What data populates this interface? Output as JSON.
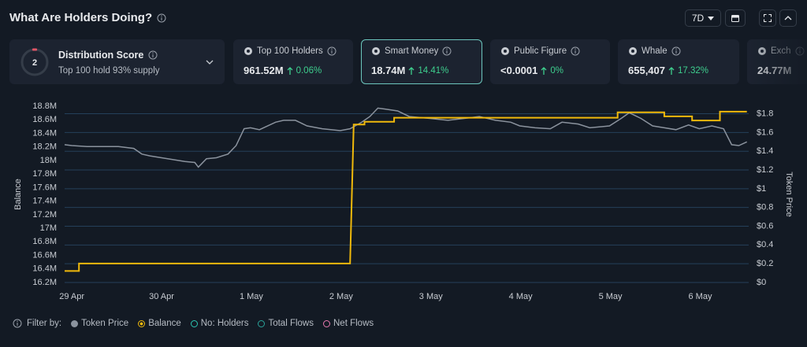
{
  "header": {
    "title": "What Are Holders Doing?",
    "range": "7D"
  },
  "score_card": {
    "score": 2,
    "label": "Distribution Score",
    "note": "Top 100 hold 93% supply"
  },
  "cards": [
    {
      "label": "Top 100 Holders",
      "value": "961.52M",
      "change": "0.06%"
    },
    {
      "label": "Smart Money",
      "value": "18.74M",
      "change": "14.41%"
    },
    {
      "label": "Public Figure",
      "value": "<0.0001",
      "change": "0%"
    },
    {
      "label": "Whale",
      "value": "655,407",
      "change": "17.32%"
    },
    {
      "label": "Exch",
      "value": "24.77M"
    }
  ],
  "filter": {
    "label": "Filter by:"
  },
  "chart_data": {
    "type": "line",
    "ylabel": "Balance",
    "y2label": "Token Price",
    "xlim": [
      -0.08,
      7.54
    ],
    "xticks": [
      {
        "value": 0,
        "label": "29 Apr"
      },
      {
        "value": 1,
        "label": "30 Apr"
      },
      {
        "value": 2,
        "label": "1 May"
      },
      {
        "value": 3,
        "label": "2 May"
      },
      {
        "value": 4,
        "label": "3 May"
      },
      {
        "value": 5,
        "label": "4 May"
      },
      {
        "value": 6,
        "label": "5 May"
      },
      {
        "value": 7,
        "label": "6 May"
      }
    ],
    "ylim": [
      16200000,
      18800000
    ],
    "yticks": [
      {
        "value": 16200000,
        "label": "16.2M"
      },
      {
        "value": 16400000,
        "label": "16.4M"
      },
      {
        "value": 16600000,
        "label": "16.6M"
      },
      {
        "value": 16800000,
        "label": "16.8M"
      },
      {
        "value": 17000000,
        "label": "17M"
      },
      {
        "value": 17200000,
        "label": "17.2M"
      },
      {
        "value": 17400000,
        "label": "17.4M"
      },
      {
        "value": 17600000,
        "label": "17.6M"
      },
      {
        "value": 17800000,
        "label": "17.8M"
      },
      {
        "value": 18000000,
        "label": "18M"
      },
      {
        "value": 18200000,
        "label": "18.2M"
      },
      {
        "value": 18400000,
        "label": "18.4M"
      },
      {
        "value": 18600000,
        "label": "18.6M"
      },
      {
        "value": 18800000,
        "label": "18.8M"
      }
    ],
    "y2lim": [
      0,
      1.88
    ],
    "y2ticks": [
      {
        "value": 0,
        "label": "$0"
      },
      {
        "value": 0.2,
        "label": "$0.2"
      },
      {
        "value": 0.4,
        "label": "$0.4"
      },
      {
        "value": 0.6,
        "label": "$0.6"
      },
      {
        "value": 0.8,
        "label": "$0.8"
      },
      {
        "value": 1,
        "label": "$1"
      },
      {
        "value": 1.2,
        "label": "$1.2"
      },
      {
        "value": 1.4,
        "label": "$1.4"
      },
      {
        "value": 1.6,
        "label": "$1.6"
      },
      {
        "value": 1.8,
        "label": "$1.8"
      }
    ],
    "grid": "y2",
    "series": [
      {
        "name": "Token Price",
        "color": "#8b939e",
        "axis": "y2",
        "x": [
          -0.08,
          0,
          0.17,
          0.34,
          0.52,
          0.69,
          0.78,
          0.87,
          1.0,
          1.13,
          1.26,
          1.37,
          1.41,
          1.5,
          1.61,
          1.74,
          1.83,
          1.92,
          1.99,
          2.09,
          2.27,
          2.36,
          2.49,
          2.62,
          2.79,
          2.99,
          3.1,
          3.23,
          3.32,
          3.41,
          3.49,
          3.63,
          3.76,
          3.99,
          4.19,
          4.37,
          4.54,
          4.72,
          4.89,
          4.99,
          5.16,
          5.33,
          5.46,
          5.64,
          5.77,
          5.99,
          6.12,
          6.21,
          6.34,
          6.47,
          6.6,
          6.73,
          6.87,
          6.99,
          7.13,
          7.26,
          7.35,
          7.43,
          7.52
        ],
        "values": [
          1.47,
          1.46,
          1.45,
          1.45,
          1.45,
          1.43,
          1.37,
          1.35,
          1.33,
          1.31,
          1.29,
          1.28,
          1.23,
          1.32,
          1.33,
          1.37,
          1.46,
          1.64,
          1.65,
          1.63,
          1.71,
          1.73,
          1.73,
          1.67,
          1.64,
          1.62,
          1.64,
          1.71,
          1.77,
          1.86,
          1.85,
          1.83,
          1.77,
          1.75,
          1.73,
          1.75,
          1.77,
          1.73,
          1.71,
          1.67,
          1.65,
          1.64,
          1.71,
          1.69,
          1.65,
          1.67,
          1.75,
          1.81,
          1.75,
          1.67,
          1.65,
          1.63,
          1.68,
          1.64,
          1.67,
          1.64,
          1.47,
          1.46,
          1.5
        ]
      },
      {
        "name": "Balance",
        "color": "#f0b90b",
        "x": [
          -0.08,
          0.08,
          0.08,
          3.1,
          3.14,
          3.26,
          3.26,
          3.59,
          3.59,
          6.08,
          6.08,
          6.6,
          6.6,
          6.91,
          6.91,
          7.22,
          7.22,
          7.52
        ],
        "values": [
          16370000,
          16370000,
          16480000,
          16480000,
          18530000,
          18530000,
          18570000,
          18570000,
          18630000,
          18630000,
          18710000,
          18710000,
          18650000,
          18650000,
          18590000,
          18590000,
          18720000,
          18720000
        ]
      }
    ],
    "inactive_series": [
      {
        "name": "No: Holders",
        "color": "#2cc6b2"
      },
      {
        "name": "Total Flows",
        "color": "#2aa39a"
      },
      {
        "name": "Net Flows",
        "color": "#e879b0"
      }
    ]
  }
}
